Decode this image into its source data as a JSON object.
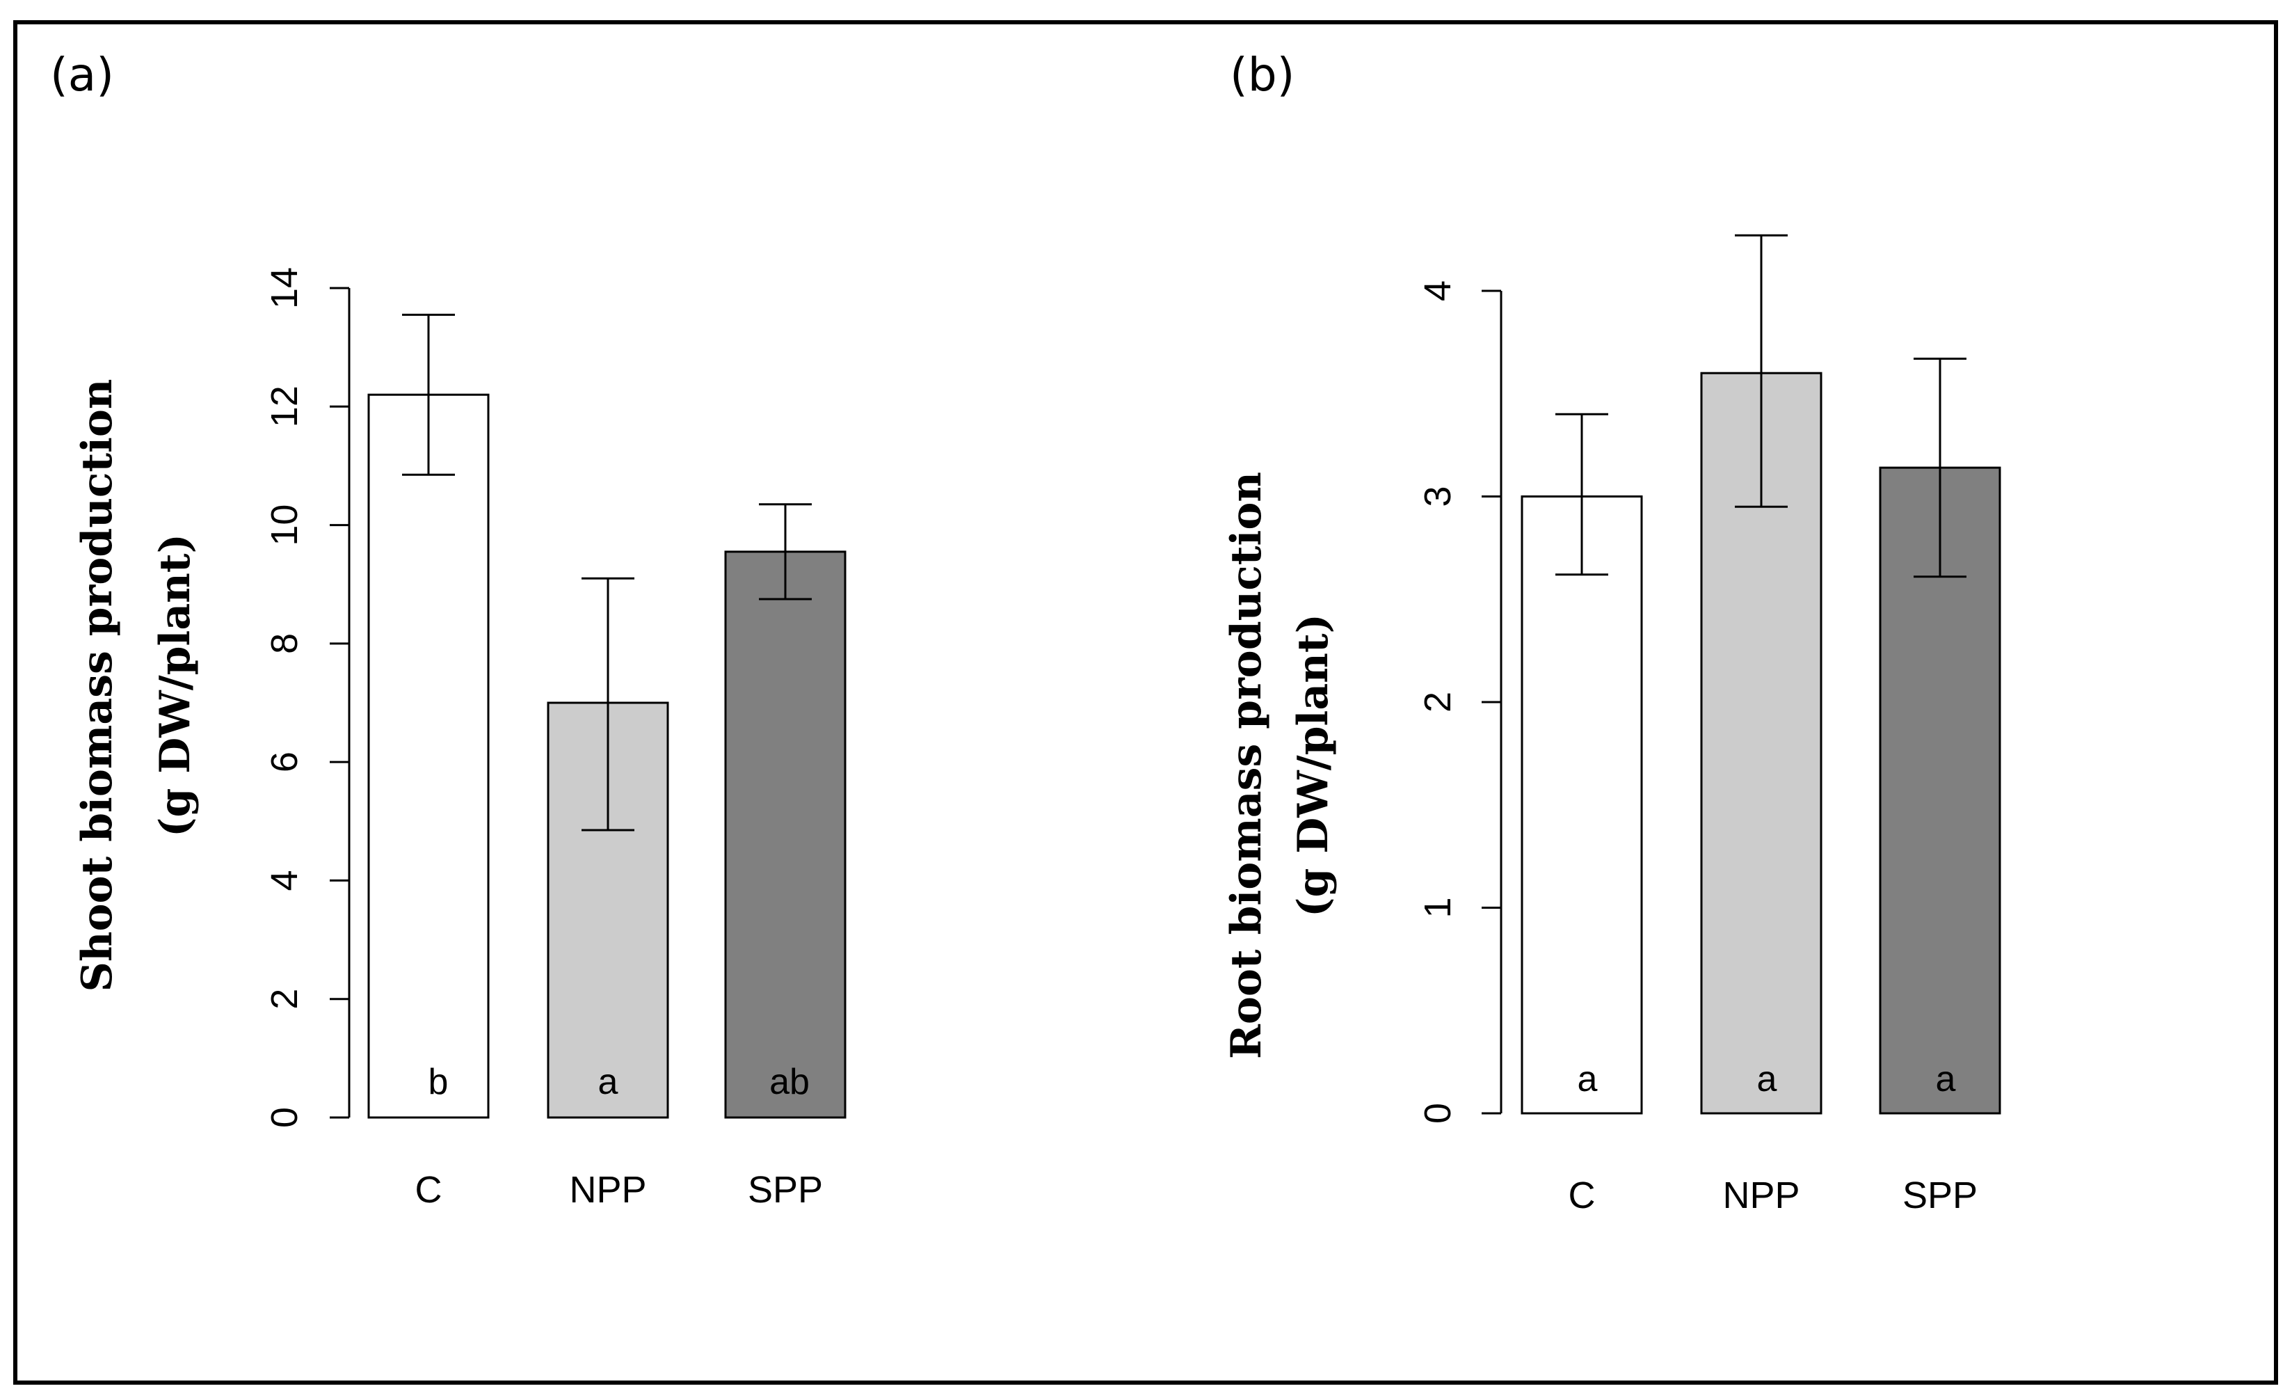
{
  "chart_data": [
    {
      "type": "bar",
      "panel_label": "(a)",
      "title": "",
      "xlabel": "",
      "ylabel_lines": [
        "Shoot biomass production",
        "(g DW/plant)"
      ],
      "categories": [
        "C",
        "NPP",
        "SPP"
      ],
      "values": [
        12.2,
        7.0,
        9.55
      ],
      "error_lower": [
        10.85,
        4.85,
        8.75
      ],
      "error_upper": [
        13.55,
        9.1,
        10.35
      ],
      "letters": [
        "b",
        "a",
        "ab"
      ],
      "bar_colors": [
        "#ffffff",
        "#cccccc",
        "#808080"
      ],
      "ylim": [
        0,
        14
      ],
      "yticks": [
        "0",
        "2",
        "4",
        "6",
        "8",
        "10",
        "12",
        "14"
      ]
    },
    {
      "type": "bar",
      "panel_label": "(b)",
      "title": "",
      "xlabel": "",
      "ylabel_lines": [
        "Root biomass production",
        "(g DW/plant)"
      ],
      "categories": [
        "C",
        "NPP",
        "SPP"
      ],
      "values": [
        3.0,
        3.6,
        3.14
      ],
      "error_lower": [
        2.62,
        2.95,
        2.61
      ],
      "error_upper": [
        3.4,
        4.27,
        3.67
      ],
      "letters": [
        "a",
        "a",
        "a"
      ],
      "bar_colors": [
        "#ffffff",
        "#cccccc",
        "#808080"
      ],
      "ylim": [
        0,
        4
      ],
      "yticks": [
        "0",
        "1",
        "2",
        "3",
        "4"
      ]
    }
  ]
}
